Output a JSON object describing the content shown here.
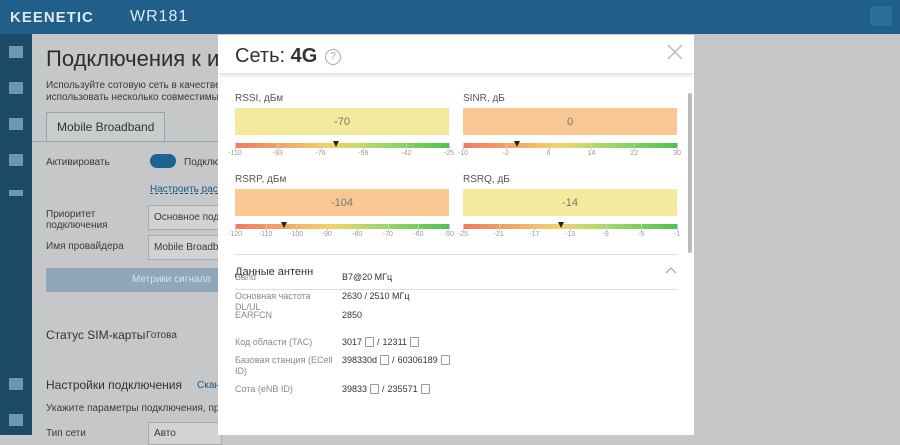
{
  "header": {
    "brand": "KEENETIC",
    "model": "WR181"
  },
  "background": {
    "title": "Подключения к и",
    "description": [
      "Используйте сотовую сеть в качестве осно",
      "использовать несколько совместимых USB"
    ],
    "tab": "Mobile Broadband",
    "activate": "Активировать",
    "activate_state": "Подклю",
    "schedule": "Настроить распи",
    "priority_label": "Приоритет подключения",
    "priority_value": "Основное подкл",
    "provider_label": "Имя провайдера",
    "provider_value": "Mobile Broadban",
    "metrics_button": "Метрики сигнала",
    "sim_label": "Статус SIM-карты",
    "sim_value": "Готова",
    "settings_title": "Настройки подключения",
    "settings_link": "Скан",
    "settings_hint": "Укажите параметры подключения, предост",
    "net_type_label": "Тип сети",
    "net_type_value": "Авто"
  },
  "modal": {
    "title_prefix": "Сеть:",
    "title_value": "4G",
    "help": "?",
    "gauges": [
      {
        "label": "RSSI, дБм",
        "value": -70,
        "color": "#f3ea9e",
        "ticks": [
          -110,
          -93,
          -76,
          -59,
          -42,
          -25
        ]
      },
      {
        "label": "SINR, дБ",
        "value": 0,
        "color": "#f9c792",
        "ticks": [
          -10,
          -2,
          6,
          14,
          22,
          30
        ]
      },
      {
        "label": "RSRP, дБм",
        "value": -104,
        "color": "#f9c792",
        "ticks": [
          -120,
          -110,
          -100,
          -90,
          -80,
          -70,
          -60,
          -50
        ]
      },
      {
        "label": "RSRQ, дБ",
        "value": -14,
        "color": "#f3ea9e",
        "ticks": [
          -25,
          -21,
          -17,
          -13,
          -9,
          -5,
          -1
        ]
      }
    ],
    "section": "Данные антенн",
    "rows": [
      {
        "label": "Band",
        "parts": [
          {
            "text": "B7@20 МГц"
          }
        ]
      },
      {
        "label": "Основная частота DL/UL",
        "parts": [
          {
            "text": "2630 / 2510 МГц"
          }
        ]
      },
      {
        "label": "EARFCN",
        "parts": [
          {
            "text": "2850"
          }
        ]
      },
      {
        "label": "Код области (TAC)",
        "parts": [
          {
            "text": "3017",
            "copy": true
          },
          {
            "text": "/"
          },
          {
            "text": "12311",
            "copy": true
          }
        ]
      },
      {
        "label": "Базовая станция (ECell ID)",
        "parts": [
          {
            "text": "398330d",
            "copy": true
          },
          {
            "text": "/"
          },
          {
            "text": "60306189",
            "copy": true
          }
        ]
      },
      {
        "label": "Сота (eNB ID)",
        "parts": [
          {
            "text": "39833",
            "copy": true
          },
          {
            "text": "/"
          },
          {
            "text": "235571",
            "copy": true
          }
        ]
      }
    ]
  }
}
